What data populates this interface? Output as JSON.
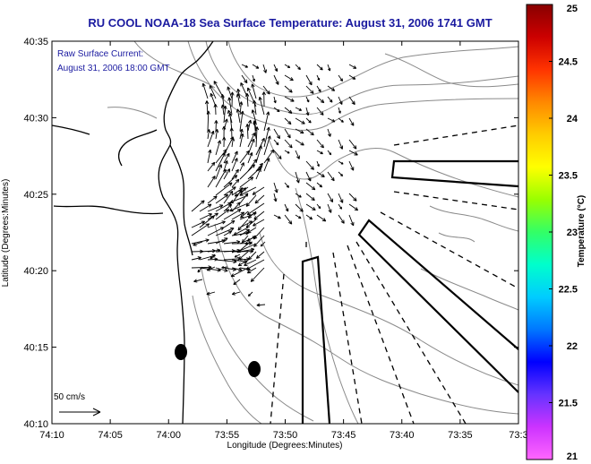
{
  "title": "RU COOL  NOAA-18  Sea Surface Temperature:  August 31, 2006 1741 GMT",
  "annotation": {
    "line1": "Raw Surface Current:",
    "line2": "August 31, 2006 18:00 GMT"
  },
  "scale_label": "50 cm/s",
  "x_axis": {
    "label": "Longitude (Degrees:Minutes)",
    "ticks": [
      "74:10",
      "74:05",
      "74:00",
      "73:55",
      "73:50",
      "73:45",
      "73:40",
      "73:35",
      "73:3"
    ]
  },
  "y_axis": {
    "label": "Latitude (Degrees:Minutes)",
    "ticks": [
      "40:35",
      "40:30",
      "40:25",
      "40:20",
      "40:15",
      "40:10"
    ]
  },
  "colorbar": {
    "label": "Temperature (°C)",
    "ticks": [
      "25",
      "24.5",
      "24",
      "23.5",
      "23",
      "22.5",
      "22",
      "21.5",
      "21"
    ],
    "colors": [
      "#ff66ff",
      "#cc33ff",
      "#6633ff",
      "#0000ff",
      "#0077ff",
      "#00ccff",
      "#00ffcc",
      "#33ff66",
      "#99ff00",
      "#ffff00",
      "#ffcc00",
      "#ff8800",
      "#ff3300",
      "#cc0000",
      "#880000"
    ]
  },
  "map_colors": {
    "coast": "#000000",
    "contour": "#8a8a8a",
    "vector": "#000000"
  }
}
